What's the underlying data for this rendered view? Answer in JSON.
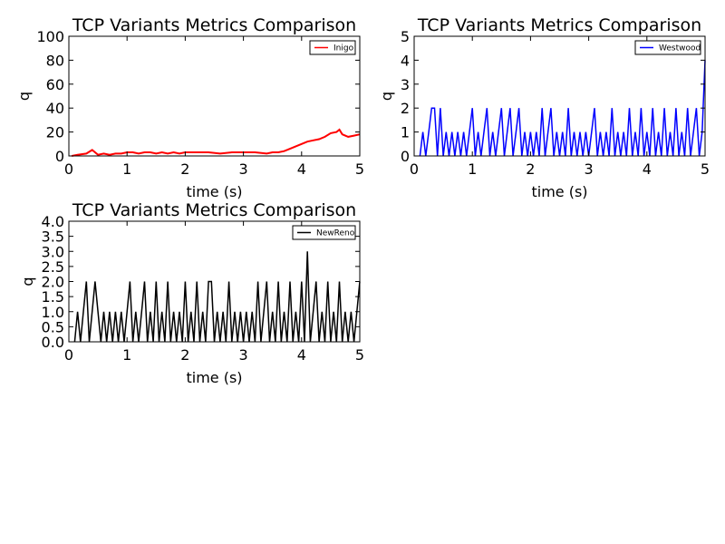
{
  "chart_data": [
    {
      "type": "line",
      "title": "TCP Variants Metrics Comparison",
      "xlabel": "time (s)",
      "ylabel": "q",
      "xlim": [
        0,
        5
      ],
      "ylim": [
        0,
        100
      ],
      "xticks": [
        "0",
        "1",
        "2",
        "3",
        "4",
        "5"
      ],
      "yticks": [
        "0",
        "20",
        "40",
        "60",
        "80",
        "100"
      ],
      "legend_position": "upper right",
      "grid": false,
      "series": [
        {
          "name": "Inigo",
          "color": "#ff0000",
          "x": [
            0.05,
            0.15,
            0.3,
            0.4,
            0.5,
            0.6,
            0.7,
            0.8,
            0.9,
            1.0,
            1.1,
            1.2,
            1.3,
            1.4,
            1.5,
            1.6,
            1.7,
            1.8,
            1.9,
            2.0,
            2.2,
            2.4,
            2.6,
            2.8,
            3.0,
            3.2,
            3.4,
            3.5,
            3.6,
            3.7,
            3.8,
            3.9,
            4.0,
            4.1,
            4.2,
            4.3,
            4.4,
            4.5,
            4.6,
            4.65,
            4.7,
            4.8,
            4.9,
            5.0
          ],
          "y": [
            0,
            1,
            2,
            5,
            1,
            2,
            1,
            2,
            2,
            3,
            3,
            2,
            3,
            3,
            2,
            3,
            2,
            3,
            2,
            3,
            3,
            3,
            2,
            3,
            3,
            3,
            2,
            3,
            3,
            4,
            6,
            8,
            10,
            12,
            13,
            14,
            16,
            19,
            20,
            22,
            18,
            16,
            17,
            18
          ]
        }
      ]
    },
    {
      "type": "line",
      "title": "TCP Variants Metrics Comparison",
      "xlabel": "time (s)",
      "ylabel": "q",
      "xlim": [
        0,
        5
      ],
      "ylim": [
        0,
        5
      ],
      "xticks": [
        "0",
        "1",
        "2",
        "3",
        "4",
        "5"
      ],
      "yticks": [
        "0",
        "1",
        "2",
        "3",
        "4",
        "5"
      ],
      "legend_position": "upper right",
      "grid": false,
      "series": [
        {
          "name": "Westwood",
          "color": "#0000ff",
          "x": [
            0.1,
            0.15,
            0.2,
            0.25,
            0.3,
            0.35,
            0.4,
            0.45,
            0.5,
            0.55,
            0.6,
            0.65,
            0.7,
            0.75,
            0.8,
            0.85,
            0.9,
            0.95,
            1.0,
            1.05,
            1.1,
            1.15,
            1.2,
            1.25,
            1.3,
            1.35,
            1.4,
            1.45,
            1.5,
            1.55,
            1.6,
            1.65,
            1.7,
            1.75,
            1.8,
            1.85,
            1.9,
            1.95,
            2.0,
            2.05,
            2.1,
            2.15,
            2.2,
            2.25,
            2.3,
            2.35,
            2.4,
            2.45,
            2.5,
            2.55,
            2.6,
            2.65,
            2.7,
            2.75,
            2.8,
            2.85,
            2.9,
            2.95,
            3.0,
            3.05,
            3.1,
            3.15,
            3.2,
            3.25,
            3.3,
            3.35,
            3.4,
            3.45,
            3.5,
            3.55,
            3.6,
            3.65,
            3.7,
            3.75,
            3.8,
            3.85,
            3.9,
            3.95,
            4.0,
            4.05,
            4.1,
            4.15,
            4.2,
            4.25,
            4.3,
            4.35,
            4.4,
            4.45,
            4.5,
            4.55,
            4.6,
            4.65,
            4.7,
            4.75,
            4.8,
            4.85,
            4.9,
            4.95,
            5.0
          ],
          "y": [
            0,
            1,
            0,
            1,
            2,
            2,
            0,
            2,
            0,
            1,
            0,
            1,
            0,
            1,
            0,
            1,
            0,
            1,
            2,
            0,
            1,
            0,
            1,
            2,
            0,
            1,
            0,
            1,
            2,
            0,
            1,
            2,
            0,
            1,
            2,
            0,
            1,
            0,
            1,
            0,
            1,
            0,
            2,
            0,
            1,
            2,
            0,
            1,
            0,
            1,
            0,
            2,
            0,
            1,
            0,
            1,
            0,
            1,
            0,
            1,
            2,
            0,
            1,
            0,
            1,
            0,
            2,
            0,
            1,
            0,
            1,
            0,
            2,
            0,
            1,
            0,
            2,
            0,
            1,
            0,
            2,
            0,
            1,
            0,
            2,
            0,
            1,
            0,
            2,
            0,
            1,
            0,
            2,
            0,
            1,
            2,
            0,
            1,
            4
          ]
        }
      ]
    },
    {
      "type": "line",
      "title": "TCP Variants Metrics Comparison",
      "xlabel": "time (s)",
      "ylabel": "q",
      "xlim": [
        0,
        5
      ],
      "ylim": [
        0,
        4
      ],
      "xticks": [
        "0",
        "1",
        "2",
        "3",
        "4",
        "5"
      ],
      "yticks": [
        "0.0",
        "0.5",
        "1.0",
        "1.5",
        "2.0",
        "2.5",
        "3.0",
        "3.5",
        "4.0"
      ],
      "legend_position": "upper right",
      "grid": false,
      "series": [
        {
          "name": "NewReno",
          "color": "#000000",
          "x": [
            0.1,
            0.15,
            0.2,
            0.25,
            0.3,
            0.35,
            0.4,
            0.45,
            0.5,
            0.55,
            0.6,
            0.65,
            0.7,
            0.75,
            0.8,
            0.85,
            0.9,
            0.95,
            1.0,
            1.05,
            1.1,
            1.15,
            1.2,
            1.25,
            1.3,
            1.35,
            1.4,
            1.45,
            1.5,
            1.55,
            1.6,
            1.65,
            1.7,
            1.75,
            1.8,
            1.85,
            1.9,
            1.95,
            2.0,
            2.05,
            2.1,
            2.15,
            2.2,
            2.25,
            2.3,
            2.35,
            2.4,
            2.45,
            2.5,
            2.55,
            2.6,
            2.65,
            2.7,
            2.75,
            2.8,
            2.85,
            2.9,
            2.95,
            3.0,
            3.05,
            3.1,
            3.15,
            3.2,
            3.25,
            3.3,
            3.35,
            3.4,
            3.45,
            3.5,
            3.55,
            3.6,
            3.65,
            3.7,
            3.75,
            3.8,
            3.85,
            3.9,
            3.95,
            4.0,
            4.05,
            4.1,
            4.15,
            4.2,
            4.25,
            4.3,
            4.35,
            4.4,
            4.45,
            4.5,
            4.55,
            4.6,
            4.65,
            4.7,
            4.75,
            4.8,
            4.85,
            4.9,
            4.95,
            5.0
          ],
          "y": [
            0,
            1,
            0,
            1,
            2,
            0,
            1,
            2,
            1,
            0,
            1,
            0,
            1,
            0,
            1,
            0,
            1,
            0,
            1,
            2,
            0,
            1,
            0,
            1,
            2,
            0,
            1,
            0,
            2,
            0,
            1,
            0,
            2,
            0,
            1,
            0,
            1,
            0,
            2,
            0,
            1,
            0,
            2,
            0,
            1,
            0,
            2,
            2,
            0,
            1,
            0,
            1,
            0,
            2,
            0,
            1,
            0,
            1,
            0,
            1,
            0,
            1,
            0,
            2,
            0,
            1,
            2,
            0,
            1,
            0,
            2,
            0,
            1,
            0,
            2,
            0,
            1,
            0,
            2,
            0,
            3,
            0,
            1,
            2,
            0,
            1,
            0,
            2,
            0,
            1,
            0,
            2,
            0,
            1,
            0,
            1,
            0,
            1,
            2
          ]
        }
      ]
    }
  ]
}
